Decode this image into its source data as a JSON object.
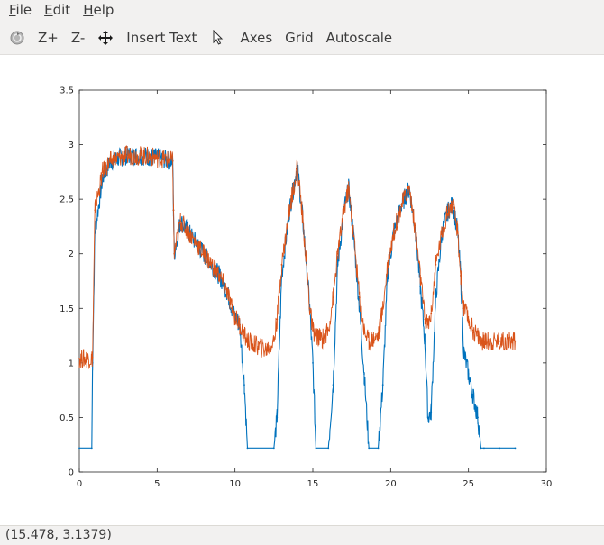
{
  "menubar": {
    "items": [
      {
        "mnemonic": "F",
        "rest": "ile"
      },
      {
        "mnemonic": "E",
        "rest": "dit"
      },
      {
        "mnemonic": "H",
        "rest": "elp"
      }
    ]
  },
  "toolbar": {
    "rotate_icon": "rotate-icon",
    "zoom_in_label": "Z+",
    "zoom_out_label": "Z-",
    "pan_icon": "pan-icon",
    "insert_text_label": "Insert Text",
    "select_icon": "pointer-icon",
    "axes_label": "Axes",
    "grid_label": "Grid",
    "autoscale_label": "Autoscale"
  },
  "status": {
    "text": "(15.478, 3.1379)"
  },
  "chart_data": {
    "type": "line",
    "xlim": [
      0,
      30
    ],
    "ylim": [
      0,
      3.5
    ],
    "xticks": [
      "0",
      "5",
      "10",
      "15",
      "20",
      "25",
      "30"
    ],
    "yticks": [
      "0",
      "0.5",
      "1",
      "1.5",
      "2",
      "2.5",
      "3",
      "3.5"
    ],
    "grid": false,
    "colors": {
      "series1": "#0072bd",
      "series2": "#d95319"
    },
    "series": [
      {
        "x": [
          0,
          0.8,
          0.85,
          1.0,
          1.5,
          2.0,
          3.0,
          4.0,
          5.0,
          6.0,
          6.05,
          6.1,
          6.5,
          7.0,
          8.0,
          9.0,
          9.5,
          9.8,
          10.0,
          10.3,
          10.6,
          10.8,
          12.5,
          12.7,
          13.0,
          13.5,
          14.0,
          14.3,
          14.6,
          14.8,
          15.0,
          15.2,
          16.0,
          16.3,
          16.6,
          17.0,
          17.3,
          17.6,
          18.0,
          18.3,
          18.6,
          19.2,
          19.5,
          19.8,
          20.2,
          20.7,
          21.2,
          21.6,
          21.9,
          22.2,
          22.4,
          22.6,
          22.9,
          23.3,
          23.7,
          24.0,
          24.3,
          24.5,
          24.7,
          25.0,
          25.3,
          25.6,
          25.8,
          26.0,
          27.0,
          28.0
        ],
        "y": [
          0.22,
          0.22,
          1.0,
          2.2,
          2.7,
          2.85,
          2.9,
          2.9,
          2.88,
          2.85,
          2.4,
          2.0,
          2.3,
          2.2,
          2.0,
          1.8,
          1.65,
          1.5,
          1.42,
          1.35,
          0.8,
          0.22,
          0.22,
          0.5,
          1.8,
          2.4,
          2.8,
          2.4,
          1.9,
          1.5,
          1.0,
          0.22,
          0.22,
          0.8,
          1.9,
          2.4,
          2.6,
          2.2,
          1.5,
          0.9,
          0.22,
          0.22,
          0.8,
          1.8,
          2.2,
          2.45,
          2.6,
          2.2,
          1.7,
          1.2,
          0.5,
          0.55,
          1.6,
          2.2,
          2.4,
          2.45,
          2.2,
          1.8,
          1.1,
          0.9,
          0.7,
          0.5,
          0.22,
          0.22,
          0.22,
          0.22
        ]
      },
      {
        "x": [
          0,
          0.8,
          0.85,
          1.0,
          1.5,
          2.0,
          3.0,
          4.0,
          5.0,
          6.0,
          6.05,
          6.1,
          6.5,
          7.0,
          8.0,
          9.0,
          9.5,
          9.8,
          10.0,
          10.3,
          10.6,
          10.8,
          11.5,
          12.0,
          12.5,
          12.7,
          13.0,
          13.5,
          14.0,
          14.3,
          14.6,
          14.8,
          15.0,
          15.2,
          15.6,
          16.0,
          16.3,
          16.6,
          17.0,
          17.3,
          17.6,
          18.0,
          18.3,
          18.6,
          19.2,
          19.5,
          19.8,
          20.2,
          20.7,
          21.2,
          21.6,
          21.9,
          22.2,
          22.4,
          22.6,
          22.9,
          23.3,
          23.7,
          24.0,
          24.3,
          24.5,
          24.7,
          25.0,
          25.3,
          25.6,
          25.8,
          26.0,
          27.0,
          28.0
        ],
        "y": [
          1.04,
          1.04,
          1.05,
          2.4,
          2.75,
          2.85,
          2.9,
          2.9,
          2.88,
          2.85,
          2.4,
          2.0,
          2.3,
          2.2,
          2.0,
          1.8,
          1.65,
          1.5,
          1.42,
          1.35,
          1.25,
          1.2,
          1.15,
          1.12,
          1.2,
          1.4,
          1.9,
          2.4,
          2.8,
          2.4,
          1.9,
          1.5,
          1.3,
          1.25,
          1.22,
          1.3,
          1.6,
          2.0,
          2.4,
          2.6,
          2.2,
          1.6,
          1.3,
          1.2,
          1.25,
          1.5,
          1.9,
          2.2,
          2.45,
          2.6,
          2.2,
          1.8,
          1.4,
          1.35,
          1.45,
          1.9,
          2.2,
          2.4,
          2.45,
          2.2,
          1.8,
          1.5,
          1.4,
          1.3,
          1.25,
          1.2,
          1.2,
          1.2,
          1.2
        ]
      }
    ]
  }
}
